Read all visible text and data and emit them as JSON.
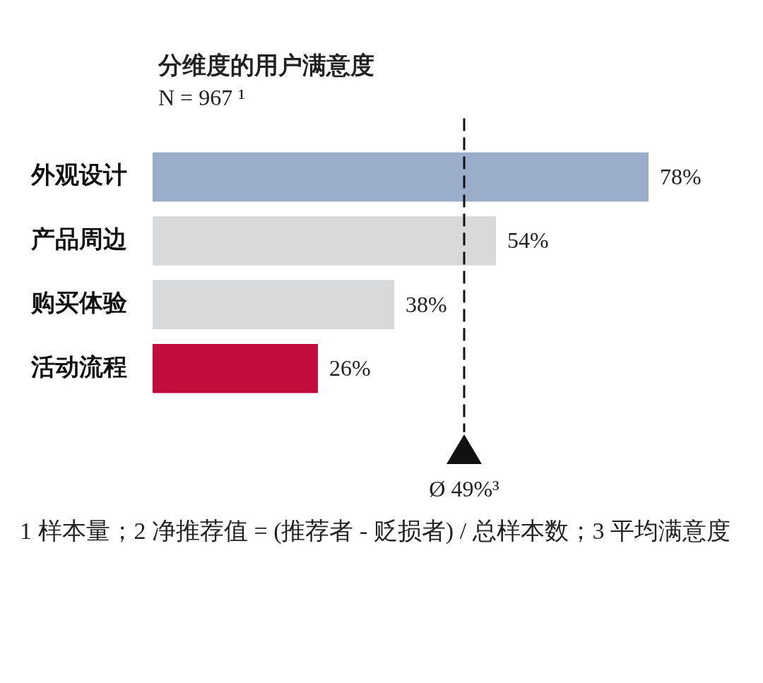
{
  "chart_data": {
    "type": "bar",
    "orientation": "horizontal",
    "title": "分维度的用户满意度",
    "subtitle": "N = 967 ¹",
    "categories": [
      "外观设计",
      "产品周边",
      "购买体验",
      "活动流程"
    ],
    "values": [
      78,
      54,
      38,
      26
    ],
    "colors": [
      "#9aaecb",
      "#d7d9db",
      "#d7d9db",
      "#c20c3c"
    ],
    "value_labels": [
      "78%",
      "54%",
      "38%",
      "26%"
    ],
    "ref_lines": [
      {
        "axis": "x",
        "value": 49,
        "label": "Ø 49%³",
        "line_style": "dashed",
        "color": "#111111"
      }
    ],
    "annotations": [
      "1 样本量；2 净推荐值 = (推荐者 - 贬损者) / 总样本数；3 平均满意度"
    ]
  }
}
